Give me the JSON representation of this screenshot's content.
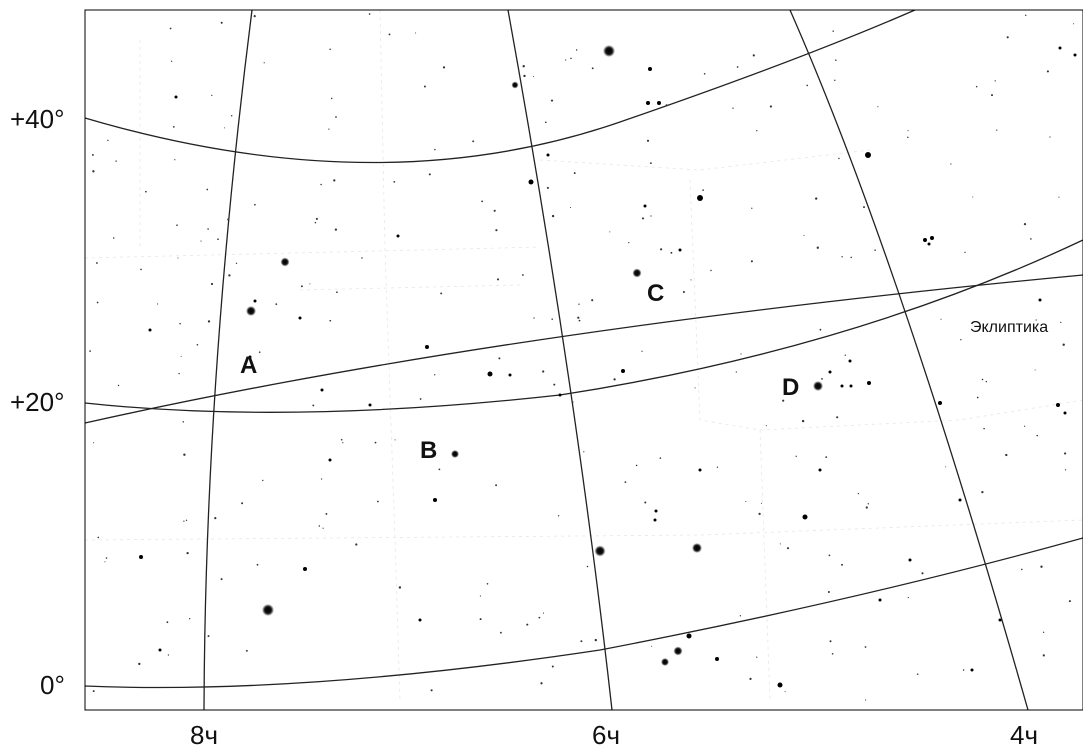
{
  "dec_labels": [
    "+40°",
    "+20°",
    "0°"
  ],
  "ra_labels": [
    "8ч",
    "6ч",
    "4ч"
  ],
  "ecliptic_label": "Эклиптика",
  "star_labels": [
    "A",
    "B",
    "C",
    "D"
  ],
  "colors": {
    "background": "#ffffff",
    "grid": "#222222",
    "star": "#000000"
  },
  "icons": {
    "star": "filled-circle"
  }
}
